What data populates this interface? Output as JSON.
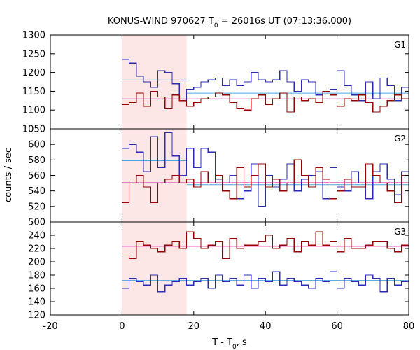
{
  "chart_data": {
    "type": "line",
    "title": {
      "prefix": "KONUS-WIND 970627 T",
      "sub": "0",
      "suffix": " = 26016s UT (07:13:36.000)"
    },
    "xlabel": {
      "prefix": "T - T",
      "sub": "0",
      "suffix": ", s"
    },
    "ylabel": "counts / sec",
    "xlim": [
      -20,
      80
    ],
    "xticks": [
      -20,
      0,
      20,
      40,
      60,
      80
    ],
    "bin_width": 2,
    "shaded_interval": [
      0,
      18
    ],
    "colors": {
      "blue": "#2b2bb8",
      "red": "#990000",
      "blue_bg": "#4aa3e0",
      "red_bg": "#ee82c8",
      "shade": "#fde6e6"
    },
    "panels": [
      {
        "label": "G1",
        "ylim": [
          1050,
          1300
        ],
        "yticks": [
          1050,
          1100,
          1150,
          1200,
          1250,
          1300
        ],
        "series": [
          {
            "color": "blue",
            "x_start": 0,
            "values": [
              1235,
              1225,
              1190,
              1175,
              1160,
              1205,
              1200,
              1170,
              1125,
              1155,
              1160,
              1175,
              1180,
              1185,
              1165,
              1180,
              1165,
              1175,
              1200,
              1180,
              1175,
              1180,
              1205,
              1175,
              1150,
              1180,
              1175,
              1140,
              1150,
              1155,
              1205,
              1165,
              1140,
              1125,
              1175,
              1130,
              1185,
              1165,
              1125,
              1160
            ]
          },
          {
            "color": "red",
            "x_start": 0,
            "values": [
              1115,
              1120,
              1145,
              1110,
              1150,
              1135,
              1105,
              1140,
              1125,
              1110,
              1120,
              1130,
              1135,
              1145,
              1140,
              1120,
              1105,
              1100,
              1130,
              1140,
              1115,
              1130,
              1145,
              1095,
              1135,
              1125,
              1130,
              1120,
              1150,
              1140,
              1110,
              1130,
              1125,
              1140,
              1120,
              1095,
              1110,
              1125,
              1140,
              1130
            ]
          }
        ],
        "backgrounds": [
          {
            "color": "blue_bg",
            "segments": [
              {
                "x": [
                  0,
                  18
                ],
                "y": 1180
              },
              {
                "x": [
                  18,
                  80
                ],
                "y": 1145
              }
            ]
          },
          {
            "color": "red_bg",
            "segments": [
              {
                "x": [
                  0,
                  80
                ],
                "y": 1130
              }
            ]
          }
        ]
      },
      {
        "label": "G2",
        "ylim": [
          500,
          620
        ],
        "yticks": [
          500,
          520,
          540,
          560,
          580,
          600
        ],
        "series": [
          {
            "color": "blue",
            "x_start": 0,
            "values": [
              595,
              600,
              590,
              565,
              610,
              570,
              615,
              585,
              560,
              595,
              570,
              595,
              590,
              555,
              550,
              560,
              530,
              540,
              575,
              520,
              560,
              545,
              555,
              575,
              540,
              555,
              560,
              565,
              530,
              570,
              545,
              540,
              565,
              550,
              530,
              565,
              575,
              555,
              535,
              565
            ]
          },
          {
            "color": "red",
            "x_start": 0,
            "values": [
              525,
              550,
              560,
              545,
              525,
              550,
              555,
              560,
              550,
              555,
              545,
              565,
              550,
              560,
              540,
              530,
              570,
              545,
              560,
              575,
              545,
              555,
              540,
              550,
              580,
              560,
              545,
              570,
              555,
              530,
              540,
              555,
              545,
              545,
              575,
              560,
              550,
              540,
              525,
              560
            ]
          }
        ],
        "backgrounds": [
          {
            "color": "blue_bg",
            "segments": [
              {
                "x": [
                  0,
                  18
                ],
                "y": 579
              },
              {
                "x": [
                  18,
                  80
                ],
                "y": 548
              }
            ]
          },
          {
            "color": "red_bg",
            "segments": [
              {
                "x": [
                  0,
                  80
                ],
                "y": 551
              }
            ]
          }
        ]
      },
      {
        "label": "G3",
        "ylim": [
          120,
          260
        ],
        "yticks": [
          120,
          140,
          160,
          180,
          200,
          220,
          240
        ],
        "series": [
          {
            "color": "blue",
            "x_start": 0,
            "values": [
              160,
              175,
              170,
              165,
              180,
              155,
              165,
              170,
              175,
              165,
              170,
              175,
              160,
              180,
              170,
              175,
              165,
              180,
              160,
              175,
              170,
              185,
              165,
              175,
              170,
              165,
              160,
              175,
              170,
              185,
              160,
              175,
              170,
              165,
              180,
              175,
              155,
              175,
              165,
              170
            ]
          },
          {
            "color": "red",
            "x_start": 0,
            "values": [
              210,
              205,
              230,
              225,
              220,
              215,
              225,
              230,
              220,
              245,
              235,
              220,
              225,
              230,
              205,
              235,
              220,
              225,
              225,
              230,
              240,
              220,
              225,
              235,
              215,
              230,
              225,
              245,
              225,
              230,
              215,
              235,
              220,
              220,
              225,
              230,
              230,
              220,
              215,
              225
            ]
          }
        ],
        "backgrounds": [
          {
            "color": "blue_bg",
            "segments": [
              {
                "x": [
                  0,
                  80
                ],
                "y": 172
              }
            ]
          },
          {
            "color": "red_bg",
            "segments": [
              {
                "x": [
                  0,
                  80
                ],
                "y": 223
              }
            ]
          }
        ]
      }
    ]
  }
}
